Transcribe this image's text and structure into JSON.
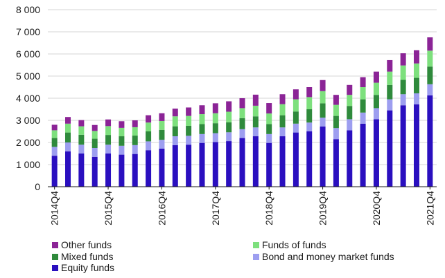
{
  "chart_data": {
    "type": "bar",
    "stacked": true,
    "title": "",
    "xlabel": "",
    "ylabel": "",
    "ylim": [
      0,
      8000
    ],
    "yticks": [
      0,
      1000,
      2000,
      3000,
      4000,
      5000,
      6000,
      7000,
      8000
    ],
    "ytick_labels": [
      "0",
      "1 000",
      "2 000",
      "3 000",
      "4 000",
      "5 000",
      "6 000",
      "7 000",
      "8 000"
    ],
    "grid": true,
    "categories": [
      "2014Q4",
      "2015Q1",
      "2015Q2",
      "2015Q3",
      "2015Q4",
      "2016Q1",
      "2016Q2",
      "2016Q3",
      "2016Q4",
      "2017Q1",
      "2017Q2",
      "2017Q3",
      "2017Q4",
      "2018Q1",
      "2018Q2",
      "2018Q3",
      "2018Q4",
      "2019Q1",
      "2019Q2",
      "2019Q3",
      "2019Q4",
      "2020Q1",
      "2020Q2",
      "2020Q3",
      "2020Q4",
      "2021Q1",
      "2021Q2",
      "2021Q3",
      "2021Q4"
    ],
    "x_tick_labels": [
      "2014Q4",
      "2015Q4",
      "2016Q4",
      "2017Q4",
      "2018Q4",
      "2019Q4",
      "2020Q4",
      "2021Q4"
    ],
    "series": [
      {
        "name": "Equity funds",
        "color": "#2a0fbf",
        "values": [
          1400,
          1600,
          1500,
          1350,
          1500,
          1450,
          1480,
          1650,
          1720,
          1880,
          1900,
          1980,
          2020,
          2060,
          2200,
          2280,
          1980,
          2280,
          2450,
          2500,
          2720,
          2150,
          2550,
          2850,
          3050,
          3450,
          3680,
          3720,
          4130
        ]
      },
      {
        "name": "Bond and money market funds",
        "color": "#9d9ef0",
        "values": [
          400,
          400,
          400,
          400,
          400,
          400,
          400,
          400,
          400,
          400,
          400,
          400,
          400,
          400,
          400,
          400,
          400,
          400,
          400,
          400,
          400,
          500,
          500,
          500,
          500,
          500,
          500,
          500,
          500
        ]
      },
      {
        "name": "Mixed funds",
        "color": "#2f8a3c",
        "values": [
          400,
          450,
          450,
          420,
          440,
          430,
          430,
          450,
          450,
          450,
          450,
          450,
          450,
          450,
          500,
          500,
          450,
          550,
          550,
          600,
          650,
          550,
          600,
          600,
          600,
          650,
          650,
          700,
          800
        ]
      },
      {
        "name": "Funds of funds",
        "color": "#7de07d",
        "values": [
          350,
          400,
          380,
          350,
          400,
          380,
          380,
          400,
          400,
          450,
          450,
          450,
          450,
          480,
          450,
          480,
          480,
          500,
          550,
          550,
          550,
          500,
          500,
          550,
          550,
          600,
          650,
          650,
          720
        ]
      },
      {
        "name": "Other funds",
        "color": "#8b2496",
        "values": [
          250,
          300,
          280,
          270,
          300,
          300,
          310,
          330,
          350,
          350,
          380,
          400,
          450,
          470,
          450,
          500,
          470,
          450,
          450,
          450,
          500,
          450,
          450,
          450,
          500,
          520,
          550,
          600,
          600
        ]
      }
    ],
    "legend": [
      {
        "label": "Other funds",
        "color": "#8b2496"
      },
      {
        "label": "Funds of funds",
        "color": "#7de07d"
      },
      {
        "label": "Mixed funds",
        "color": "#2f8a3c"
      },
      {
        "label": "Bond and money market funds",
        "color": "#9d9ef0"
      },
      {
        "label": "Equity funds",
        "color": "#2a0fbf"
      }
    ],
    "legend_position": "bottom"
  }
}
